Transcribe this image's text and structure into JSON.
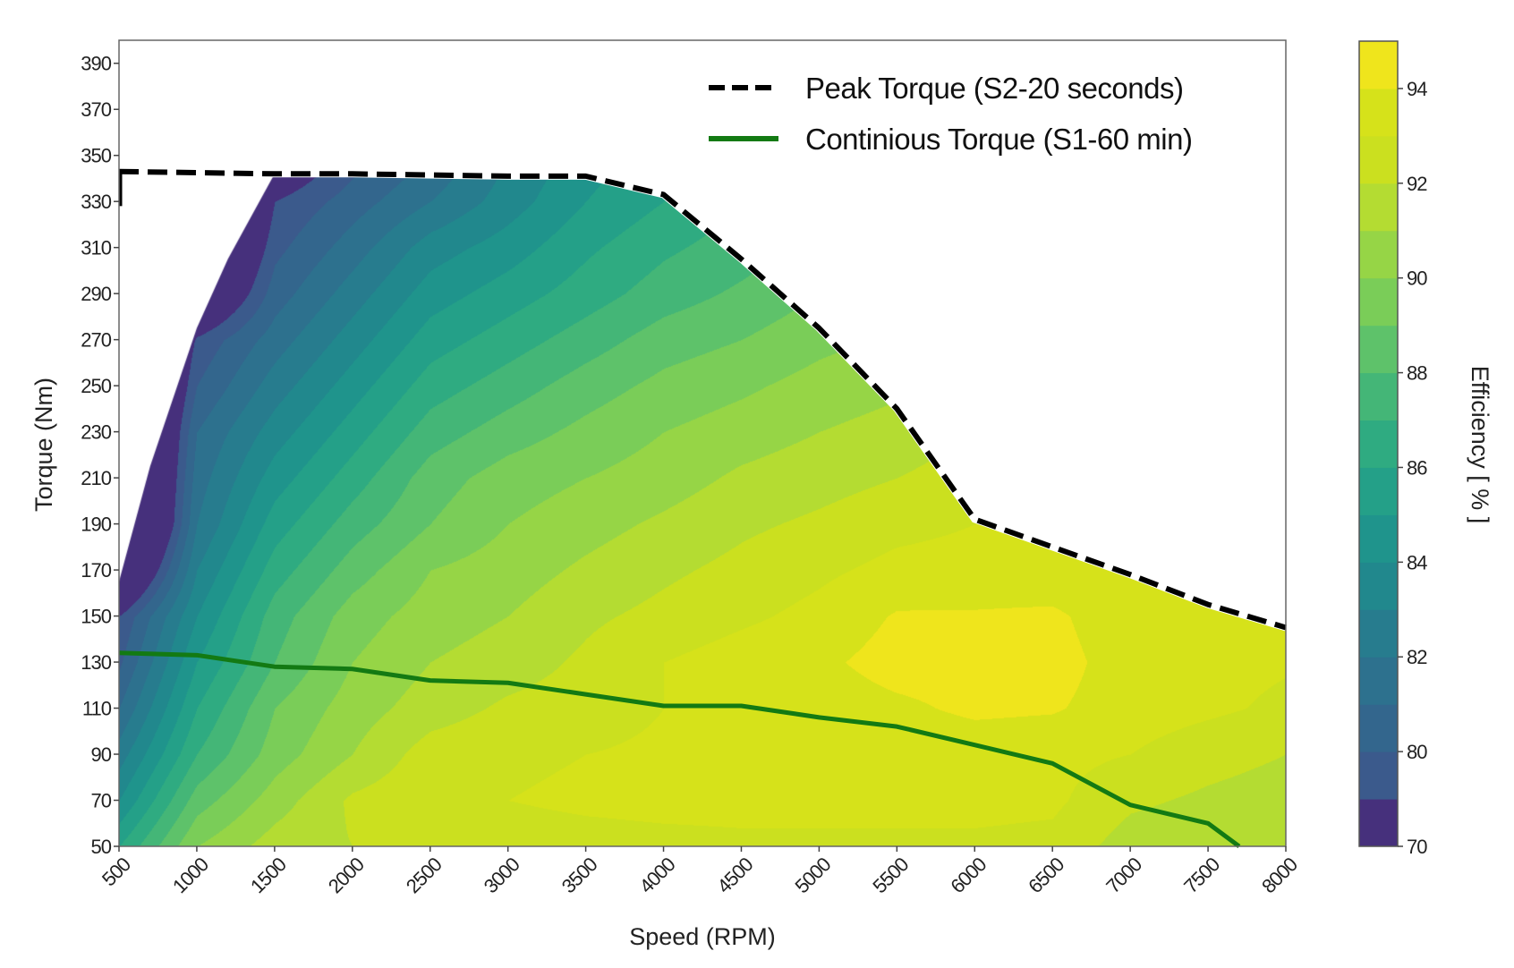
{
  "chart_data": {
    "type": "heatmap",
    "subtype": "filled-contour",
    "xlabel": "Speed (RPM)",
    "ylabel": "Torque (Nm)",
    "colorbar_label": "Efficiency [ % ]",
    "xlim": [
      500,
      8000
    ],
    "ylim": [
      50,
      400
    ],
    "xticks": [
      500,
      1000,
      1500,
      2000,
      2500,
      3000,
      3500,
      4000,
      4500,
      5000,
      5500,
      6000,
      6500,
      7000,
      7500,
      8000
    ],
    "yticks": [
      50,
      70,
      90,
      110,
      130,
      150,
      170,
      190,
      210,
      230,
      250,
      270,
      290,
      310,
      330,
      350,
      370,
      390
    ],
    "colorbar_ticks": [
      70,
      80,
      82,
      84,
      86,
      88,
      90,
      92,
      94
    ],
    "levels": [
      70,
      79,
      80,
      81,
      82,
      83,
      84,
      85,
      86,
      87,
      88,
      89,
      90,
      91,
      92,
      93,
      94,
      95
    ],
    "level_colors": [
      "#46307c",
      "#3b5a8c",
      "#33668d",
      "#2d718e",
      "#277c8e",
      "#21888d",
      "#1f948c",
      "#24a088",
      "#2fab81",
      "#44b677",
      "#5ec26a",
      "#7acd58",
      "#96d546",
      "#b4dc32",
      "#cbe01f",
      "#d6e21a",
      "#efe51c"
    ],
    "grid_speed": [
      500,
      1000,
      1500,
      2000,
      2500,
      3000,
      3500,
      4000,
      4500,
      5000,
      5500,
      6000,
      6500,
      7000,
      7500,
      8000
    ],
    "grid_torque": [
      50,
      70,
      90,
      110,
      130,
      150,
      170,
      190,
      210,
      230,
      250,
      270,
      290,
      310,
      330,
      350
    ],
    "efficiency": [
      [
        86,
        84,
        82.5,
        81,
        79.8,
        79,
        75,
        72,
        72,
        72,
        72,
        72,
        72,
        72,
        72,
        72
      ],
      [
        90,
        88.5,
        87,
        86,
        85,
        84,
        83,
        82,
        81.5,
        81,
        80,
        79.2,
        76,
        74,
        72,
        72
      ],
      [
        91.5,
        90.5,
        89.5,
        89,
        88,
        87.5,
        86.5,
        85.5,
        84.5,
        83.5,
        82.5,
        81.5,
        80.5,
        79.7,
        79,
        77
      ],
      [
        92,
        92.2,
        91,
        90.5,
        90,
        89.5,
        88.5,
        87.5,
        86.5,
        85.5,
        84.5,
        83.5,
        82.5,
        81.5,
        80.5,
        79.5
      ],
      [
        92.3,
        92.8,
        92.5,
        91.5,
        91,
        90.5,
        90,
        89,
        88.5,
        87.5,
        86.5,
        85.5,
        84.5,
        83.5,
        82,
        81
      ],
      [
        92.5,
        93,
        92.8,
        92.2,
        91.5,
        91,
        90.5,
        90,
        89.5,
        88.5,
        87.5,
        86.5,
        85.5,
        84.5,
        83.5,
        83
      ],
      [
        92.6,
        93.2,
        93,
        92.5,
        92.2,
        91.8,
        91.2,
        90.6,
        90,
        89.3,
        88.5,
        87.5,
        86.5,
        85.8,
        85,
        84.5
      ],
      [
        92.7,
        93.3,
        93.2,
        93,
        93,
        92.3,
        91.8,
        91.2,
        90.5,
        90,
        89.3,
        88.5,
        87.5,
        86.8,
        86,
        85.5
      ],
      [
        92.8,
        93.3,
        93.3,
        93.3,
        93.5,
        92.8,
        92.3,
        91.8,
        91.2,
        90.5,
        89.8,
        89,
        88.2,
        87.5,
        87,
        86.5
      ],
      [
        92.8,
        93.3,
        93.3,
        93.5,
        93.8,
        93.3,
        92.8,
        92.2,
        91.6,
        91,
        90.4,
        89.7,
        89,
        88.3,
        87.8,
        87.3
      ],
      [
        92.8,
        93.3,
        93.3,
        93.8,
        94.4,
        94.1,
        93.3,
        92.7,
        92,
        91.4,
        90.8,
        90.2,
        89.6,
        89,
        88.5,
        88
      ],
      [
        92.8,
        93.3,
        93.4,
        94.2,
        94.4,
        94.1,
        93.4,
        93,
        92.5,
        92,
        91.5,
        91,
        90.5,
        90,
        89.5,
        89
      ],
      [
        92.7,
        93.2,
        93.3,
        94.1,
        94.4,
        94.2,
        93.3,
        93,
        92.6,
        92.2,
        91.8,
        91.4,
        91,
        90.6,
        90.2,
        89.8
      ],
      [
        91.5,
        92.2,
        93,
        93.5,
        93.5,
        93.3,
        93,
        92.8,
        92.5,
        92.2,
        92,
        91.8,
        91.5,
        91.2,
        91,
        90.8
      ],
      [
        91.3,
        91.8,
        92.4,
        93.2,
        93.3,
        93.2,
        93,
        92.8,
        92.6,
        92.4,
        92.2,
        92,
        91.8,
        91.6,
        91.4,
        91.2
      ],
      [
        91.2,
        91.5,
        92,
        92.8,
        93.1,
        93,
        92.8,
        92.6,
        92.4,
        92.2,
        92,
        91.8,
        91.6,
        91.4,
        91.2,
        91
      ]
    ],
    "map_lower_left_boundary": [
      [
        500,
        165
      ],
      [
        700,
        215
      ],
      [
        1000,
        275
      ],
      [
        1200,
        305
      ],
      [
        1500,
        342
      ]
    ],
    "series": [
      {
        "name": "Peak Torque (S2-20 seconds)",
        "style": "dashed",
        "color": "#000000",
        "x": [
          500,
          1500,
          2000,
          3000,
          3500,
          4000,
          4500,
          5000,
          5500,
          6000,
          6500,
          7000,
          7500,
          8000
        ],
        "y": [
          343,
          342,
          342,
          341,
          341,
          333,
          305,
          275,
          240,
          192,
          180,
          168,
          155,
          145
        ]
      },
      {
        "name": "Continious Torque (S1-60 min)",
        "style": "solid",
        "color": "#137a13",
        "x": [
          500,
          1000,
          1500,
          2000,
          2500,
          3000,
          3500,
          4000,
          4500,
          5000,
          5500,
          6000,
          6500,
          7000,
          7500,
          7700
        ],
        "y": [
          134,
          133,
          128,
          127,
          122,
          121,
          116,
          111,
          111,
          106,
          102,
          94,
          86,
          68,
          60,
          50
        ]
      }
    ],
    "legend_position": "top-right",
    "grid": false
  }
}
